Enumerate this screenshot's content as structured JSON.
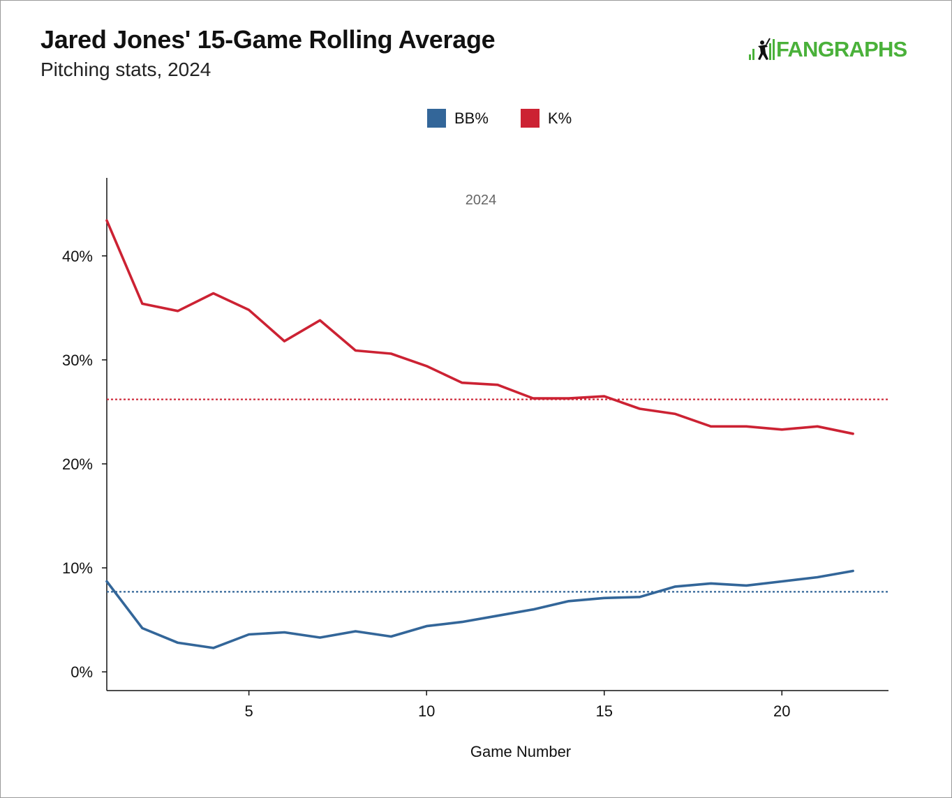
{
  "header": {
    "title": "Jared Jones' 15-Game Rolling Average",
    "subtitle": "Pitching stats, 2024",
    "logo_text": "FANGRAPHS"
  },
  "colors": {
    "bb": "#336699",
    "k": "#cc2233",
    "logo": "#4ab13a"
  },
  "chart_data": {
    "type": "line",
    "title": "Jared Jones' 15-Game Rolling Average",
    "subtitle": "Pitching stats, 2024",
    "panel_label": "2024",
    "xlabel": "Game Number",
    "ylabel": "",
    "xlim": [
      1,
      23
    ],
    "ylim": [
      -1.8,
      47.5
    ],
    "x_ticks": [
      5,
      10,
      15,
      20
    ],
    "x_tick_labels": [
      "5",
      "10",
      "15",
      "20"
    ],
    "y_ticks": [
      0,
      10,
      20,
      30,
      40
    ],
    "y_tick_labels": [
      "0%",
      "10%",
      "20%",
      "30%",
      "40%"
    ],
    "legend_position": "top-center",
    "grid": false,
    "x": [
      1,
      2,
      3,
      4,
      5,
      6,
      7,
      8,
      9,
      10,
      11,
      12,
      13,
      14,
      15,
      16,
      17,
      18,
      19,
      20,
      21,
      22
    ],
    "series": [
      {
        "name": "BB%",
        "color": "#336699",
        "values": [
          8.7,
          4.2,
          2.8,
          2.3,
          3.6,
          3.8,
          3.3,
          3.9,
          3.4,
          4.4,
          4.8,
          5.4,
          6.0,
          6.8,
          7.1,
          7.2,
          8.2,
          8.5,
          8.3,
          8.7,
          9.1,
          9.7
        ],
        "reference_line": 7.7
      },
      {
        "name": "K%",
        "color": "#cc2233",
        "values": [
          43.4,
          35.4,
          34.7,
          36.4,
          34.8,
          31.8,
          33.8,
          30.9,
          30.6,
          29.4,
          27.8,
          27.6,
          26.3,
          26.3,
          26.5,
          25.3,
          24.8,
          23.6,
          23.6,
          23.3,
          23.6,
          22.9
        ],
        "reference_line": 26.2
      }
    ]
  }
}
